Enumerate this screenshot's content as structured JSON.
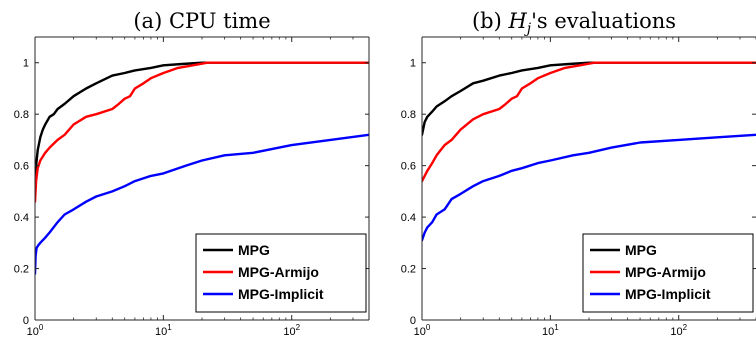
{
  "chart_data": [
    {
      "type": "line",
      "title": "(a) CPU time",
      "xscale": "log",
      "xlim": [
        1,
        400
      ],
      "ylim": [
        0,
        1.1
      ],
      "xticks": [
        {
          "value": 1,
          "base": "10",
          "exp": "0"
        },
        {
          "value": 10,
          "base": "10",
          "exp": "1"
        },
        {
          "value": 100,
          "base": "10",
          "exp": "2"
        }
      ],
      "yticks": [
        {
          "value": 0,
          "label": "0"
        },
        {
          "value": 0.2,
          "label": "0.2"
        },
        {
          "value": 0.4,
          "label": "0.4"
        },
        {
          "value": 0.6,
          "label": "0.6"
        },
        {
          "value": 0.8,
          "label": "0.8"
        },
        {
          "value": 1,
          "label": "1"
        }
      ],
      "legend_position": "bottom-right",
      "series": [
        {
          "name": "MPG",
          "color": "#000000",
          "x": [
            1,
            1.02,
            1.05,
            1.1,
            1.15,
            1.2,
            1.3,
            1.4,
            1.5,
            1.7,
            2,
            2.5,
            3,
            4,
            5,
            6,
            8,
            10,
            14,
            20,
            400
          ],
          "y": [
            0.55,
            0.6,
            0.66,
            0.71,
            0.74,
            0.76,
            0.79,
            0.8,
            0.82,
            0.84,
            0.87,
            0.9,
            0.92,
            0.95,
            0.96,
            0.97,
            0.98,
            0.99,
            0.995,
            1.0,
            1.0
          ]
        },
        {
          "name": "MPG-Armijo",
          "color": "#ff0000",
          "x": [
            1,
            1.02,
            1.05,
            1.1,
            1.2,
            1.3,
            1.5,
            1.7,
            2,
            2.5,
            3,
            4,
            4.5,
            5,
            5.5,
            6,
            7,
            8,
            10,
            13,
            17,
            22,
            400
          ],
          "y": [
            0.46,
            0.54,
            0.59,
            0.62,
            0.65,
            0.67,
            0.7,
            0.72,
            0.76,
            0.79,
            0.8,
            0.82,
            0.84,
            0.86,
            0.87,
            0.9,
            0.92,
            0.94,
            0.96,
            0.98,
            0.99,
            1.0,
            1.0
          ]
        },
        {
          "name": "MPG-Implicit",
          "color": "#0000ff",
          "x": [
            1,
            1.01,
            1.03,
            1.06,
            1.1,
            1.2,
            1.3,
            1.5,
            1.7,
            2,
            2.5,
            3,
            4,
            5,
            6,
            8,
            10,
            15,
            20,
            30,
            50,
            100,
            200,
            400
          ],
          "y": [
            0.18,
            0.25,
            0.28,
            0.29,
            0.3,
            0.32,
            0.34,
            0.38,
            0.41,
            0.43,
            0.46,
            0.48,
            0.5,
            0.52,
            0.54,
            0.56,
            0.57,
            0.6,
            0.62,
            0.64,
            0.65,
            0.68,
            0.7,
            0.72
          ]
        }
      ]
    },
    {
      "type": "line",
      "title_prefix": "(b) ",
      "title_math": "H",
      "title_sub": "j",
      "title_suffix": "'s evaluations",
      "xscale": "log",
      "xlim": [
        1,
        400
      ],
      "ylim": [
        0,
        1.1
      ],
      "xticks": [
        {
          "value": 1,
          "base": "10",
          "exp": "0"
        },
        {
          "value": 10,
          "base": "10",
          "exp": "1"
        },
        {
          "value": 100,
          "base": "10",
          "exp": "2"
        }
      ],
      "yticks": [
        {
          "value": 0,
          "label": "0"
        },
        {
          "value": 0.2,
          "label": "0.2"
        },
        {
          "value": 0.4,
          "label": "0.4"
        },
        {
          "value": 0.6,
          "label": "0.6"
        },
        {
          "value": 0.8,
          "label": "0.8"
        },
        {
          "value": 1,
          "label": "1"
        }
      ],
      "legend_position": "bottom-right",
      "series": [
        {
          "name": "MPG",
          "color": "#000000",
          "x": [
            1,
            1.05,
            1.1,
            1.2,
            1.3,
            1.5,
            1.7,
            2,
            2.5,
            3,
            4,
            5,
            6,
            8,
            10,
            14,
            20,
            400
          ],
          "y": [
            0.72,
            0.77,
            0.79,
            0.81,
            0.83,
            0.85,
            0.87,
            0.89,
            0.92,
            0.93,
            0.95,
            0.96,
            0.97,
            0.98,
            0.99,
            0.995,
            1.0,
            1.0
          ]
        },
        {
          "name": "MPG-Armijo",
          "color": "#ff0000",
          "x": [
            1,
            1.1,
            1.2,
            1.3,
            1.5,
            1.7,
            2,
            2.5,
            3,
            4,
            4.5,
            5,
            5.5,
            6,
            7,
            8,
            10,
            13,
            17,
            22,
            400
          ],
          "y": [
            0.54,
            0.58,
            0.61,
            0.64,
            0.68,
            0.7,
            0.74,
            0.78,
            0.8,
            0.82,
            0.84,
            0.86,
            0.87,
            0.9,
            0.92,
            0.94,
            0.96,
            0.98,
            0.99,
            1.0,
            1.0
          ]
        },
        {
          "name": "MPG-Implicit",
          "color": "#0000ff",
          "x": [
            1,
            1.05,
            1.1,
            1.2,
            1.3,
            1.5,
            1.7,
            2,
            2.5,
            3,
            4,
            5,
            6,
            8,
            10,
            15,
            20,
            30,
            50,
            100,
            200,
            400
          ],
          "y": [
            0.31,
            0.34,
            0.36,
            0.38,
            0.41,
            0.43,
            0.47,
            0.49,
            0.52,
            0.54,
            0.56,
            0.58,
            0.59,
            0.61,
            0.62,
            0.64,
            0.65,
            0.67,
            0.69,
            0.7,
            0.71,
            0.72
          ]
        }
      ]
    }
  ]
}
